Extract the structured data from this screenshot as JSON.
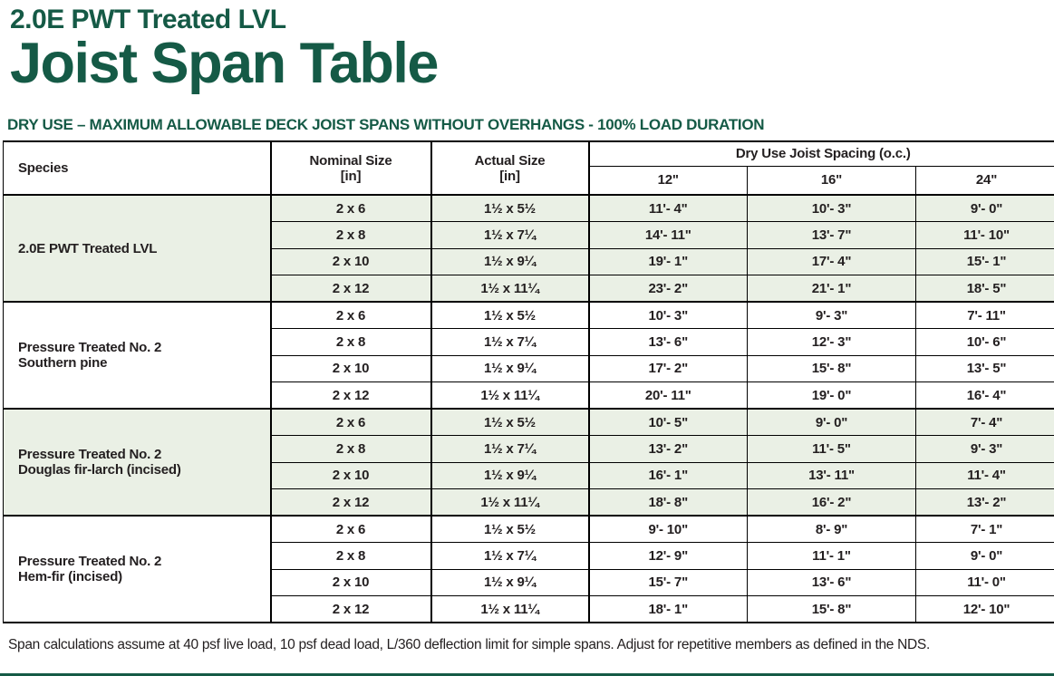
{
  "header": {
    "eyebrow": "2.0E PWT Treated LVL",
    "title": "Joist Span Table",
    "subtitle": "DRY USE – MAXIMUM ALLOWABLE DECK JOIST SPANS WITHOUT OVERHANGS - 100% LOAD DURATION"
  },
  "table": {
    "col_species": "Species",
    "col_nominal": "Nominal Size",
    "col_nominal_unit": "[in]",
    "col_actual": "Actual Size",
    "col_actual_unit": "[in]",
    "col_spacing_group": "Dry Use Joist Spacing (o.c.)",
    "spacing_cols": [
      "12\"",
      "16\"",
      "24\""
    ],
    "groups": [
      {
        "species": "2.0E PWT Treated LVL",
        "species_line2": "",
        "shaded": true,
        "rows": [
          {
            "nominal": "2 x 6",
            "actual": "1½ x 5½",
            "spans": [
              "11'- 4\"",
              "10'- 3\"",
              "9'- 0\""
            ]
          },
          {
            "nominal": "2 x 8",
            "actual": "1½ x 7¼",
            "spans": [
              "14'- 11\"",
              "13'- 7\"",
              "11'- 10\""
            ]
          },
          {
            "nominal": "2 x 10",
            "actual": "1½ x 9¼",
            "spans": [
              "19'- 1\"",
              "17'- 4\"",
              "15'- 1\""
            ]
          },
          {
            "nominal": "2 x 12",
            "actual": "1½ x 11¼",
            "spans": [
              "23'- 2\"",
              "21'- 1\"",
              "18'- 5\""
            ]
          }
        ]
      },
      {
        "species": "Pressure Treated No. 2",
        "species_line2": "Southern pine",
        "shaded": false,
        "rows": [
          {
            "nominal": "2 x 6",
            "actual": "1½ x 5½",
            "spans": [
              "10'- 3\"",
              "9'- 3\"",
              "7'- 11\""
            ]
          },
          {
            "nominal": "2 x 8",
            "actual": "1½ x 7¼",
            "spans": [
              "13'- 6\"",
              "12'- 3\"",
              "10'- 6\""
            ]
          },
          {
            "nominal": "2 x 10",
            "actual": "1½ x 9¼",
            "spans": [
              "17'- 2\"",
              "15'- 8\"",
              "13'- 5\""
            ]
          },
          {
            "nominal": "2 x 12",
            "actual": "1½ x 11¼",
            "spans": [
              "20'- 11\"",
              "19'- 0\"",
              "16'- 4\""
            ]
          }
        ]
      },
      {
        "species": "Pressure Treated No. 2",
        "species_line2": "Douglas fir-larch (incised)",
        "shaded": true,
        "rows": [
          {
            "nominal": "2 x 6",
            "actual": "1½ x 5½",
            "spans": [
              "10'- 5\"",
              "9'- 0\"",
              "7'- 4\""
            ]
          },
          {
            "nominal": "2 x 8",
            "actual": "1½ x 7¼",
            "spans": [
              "13'- 2\"",
              "11'- 5\"",
              "9'- 3\""
            ]
          },
          {
            "nominal": "2 x 10",
            "actual": "1½ x 9¼",
            "spans": [
              "16'- 1\"",
              "13'- 11\"",
              "11'- 4\""
            ]
          },
          {
            "nominal": "2 x 12",
            "actual": "1½ x 11¼",
            "spans": [
              "18'- 8\"",
              "16'- 2\"",
              "13'- 2\""
            ]
          }
        ]
      },
      {
        "species": "Pressure Treated No. 2",
        "species_line2": "Hem-fir (incised)",
        "shaded": false,
        "rows": [
          {
            "nominal": "2 x 6",
            "actual": "1½ x 5½",
            "spans": [
              "9'- 10\"",
              "8'- 9\"",
              "7'- 1\""
            ]
          },
          {
            "nominal": "2 x 8",
            "actual": "1½ x 7¼",
            "spans": [
              "12'- 9\"",
              "11'- 1\"",
              "9'- 0\""
            ]
          },
          {
            "nominal": "2 x 10",
            "actual": "1½ x 9¼",
            "spans": [
              "15'- 7\"",
              "13'- 6\"",
              "11'- 0\""
            ]
          },
          {
            "nominal": "2 x 12",
            "actual": "1½ x 11¼",
            "spans": [
              "18'- 1\"",
              "15'- 8\"",
              "12'- 10\""
            ]
          }
        ]
      }
    ]
  },
  "footnote": "Span calculations assume at 40 psf live load, 10 psf dead load, L/360 deflection limit for simple spans. Adjust for repetitive members as defined in the NDS.",
  "colors": {
    "brand_green": "#155a46",
    "row_shade": "#eaf0e5",
    "ink": "#231f20"
  }
}
